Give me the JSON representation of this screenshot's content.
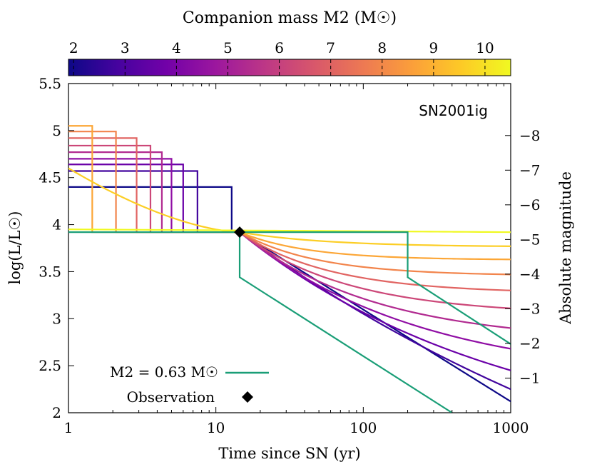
{
  "chart_data": {
    "type": "line",
    "annotation": "SN2001ig",
    "xlabel": "Time since SN (yr)",
    "ylabel": "log(L/L☉)",
    "y2label": "Absolute magnitude",
    "xscale": "log",
    "xlim": [
      1,
      1000
    ],
    "ylim": [
      2,
      5.5
    ],
    "y2lim": [
      0,
      -9.5
    ],
    "x_ticks": [
      "1",
      "10",
      "100",
      "1000"
    ],
    "y_ticks": [
      "2",
      "2.5",
      "3",
      "3.5",
      "4",
      "4.5",
      "5",
      "5.5"
    ],
    "y2_ticks": [
      "−1",
      "−2",
      "−3",
      "−4",
      "−5",
      "−6",
      "−7",
      "−8"
    ],
    "colorbar": {
      "label": "Companion mass M2 (M☉)",
      "min": 1.9,
      "max": 10.5,
      "ticks": [
        "2",
        "3",
        "4",
        "5",
        "6",
        "7",
        "8",
        "9",
        "10"
      ],
      "colormap": [
        "#0d0887",
        "#46039f",
        "#7201a8",
        "#9c179e",
        "#bd3786",
        "#d8576b",
        "#ed7953",
        "#fb9f3a",
        "#fdca26",
        "#f0f921"
      ]
    },
    "observation": {
      "x": 14.5,
      "y": 3.92
    },
    "series": [
      {
        "mass": 2,
        "color": "#0d0887",
        "pre_level": 4.4,
        "drop_t": 12.8,
        "x": [
          1,
          12.8,
          12.8,
          1000
        ],
        "y": [
          4.4,
          4.4,
          3.92,
          2.12
        ]
      },
      {
        "mass": 3,
        "color": "#41049d",
        "pre_level": 4.57,
        "drop_t": 7.5,
        "x": [
          1,
          7.5,
          7.5,
          1000
        ],
        "y": [
          4.57,
          4.57,
          3.92,
          2.25
        ]
      },
      {
        "mass": 4,
        "color": "#6a00a8",
        "pre_level": 4.64,
        "drop_t": 6.0,
        "x": [
          1,
          6.0,
          6.0,
          1000
        ],
        "y": [
          4.64,
          4.64,
          3.92,
          2.45
        ]
      },
      {
        "mass": 5,
        "color": "#8f0da4",
        "pre_level": 4.7,
        "drop_t": 5.0,
        "x": [
          1,
          5.0,
          5.0,
          1000
        ],
        "y": [
          4.7,
          4.7,
          3.92,
          2.68
        ]
      },
      {
        "mass": 6,
        "color": "#b12a90",
        "pre_level": 4.77,
        "drop_t": 4.3,
        "x": [
          1,
          4.3,
          4.3,
          1000
        ],
        "y": [
          4.77,
          4.77,
          3.92,
          2.9
        ]
      },
      {
        "mass": 7,
        "color": "#cc4778",
        "pre_level": 4.84,
        "drop_t": 3.6,
        "x": [
          1,
          3.6,
          3.6,
          1000
        ],
        "y": [
          4.84,
          4.84,
          3.92,
          3.11
        ]
      },
      {
        "mass": 8,
        "color": "#e16462",
        "pre_level": 4.92,
        "drop_t": 2.9,
        "x": [
          1,
          2.9,
          2.9,
          1000
        ],
        "y": [
          4.92,
          4.92,
          3.92,
          3.3
        ]
      },
      {
        "mass": 9,
        "color": "#f2844b",
        "pre_level": 4.99,
        "drop_t": 2.1,
        "x": [
          1,
          2.1,
          2.1,
          1000
        ],
        "y": [
          4.99,
          4.99,
          3.92,
          3.47
        ]
      },
      {
        "mass": 10,
        "color": "#fca636",
        "pre_level": 5.05,
        "drop_t": 1.45,
        "x": [
          1,
          1.45,
          1.45,
          1000
        ],
        "y": [
          5.05,
          5.05,
          3.92,
          3.63
        ]
      },
      {
        "mass": 10.5,
        "color": "#fcce25",
        "pre_level": 4.6,
        "x": [
          1,
          1000
        ],
        "y": [
          4.6,
          3.77
        ]
      },
      {
        "mass": 10.6,
        "color": "#f0f921",
        "x": [
          1,
          1000
        ],
        "y": [
          3.95,
          3.92
        ]
      }
    ],
    "green_series": {
      "name": "M2 = 0.63 M☉",
      "color": "#1a9e77",
      "legend_label": "M2 = 0.63 M☉",
      "x": [
        1,
        14.5,
        14.5,
        400
      ],
      "y": [
        3.92,
        3.92,
        3.44,
        2.0
      ],
      "x2": [
        14.5,
        200,
        200,
        1000
      ],
      "y2": [
        3.92,
        3.92,
        3.44,
        2.73
      ]
    },
    "legend": {
      "observation_label": "Observation"
    }
  }
}
